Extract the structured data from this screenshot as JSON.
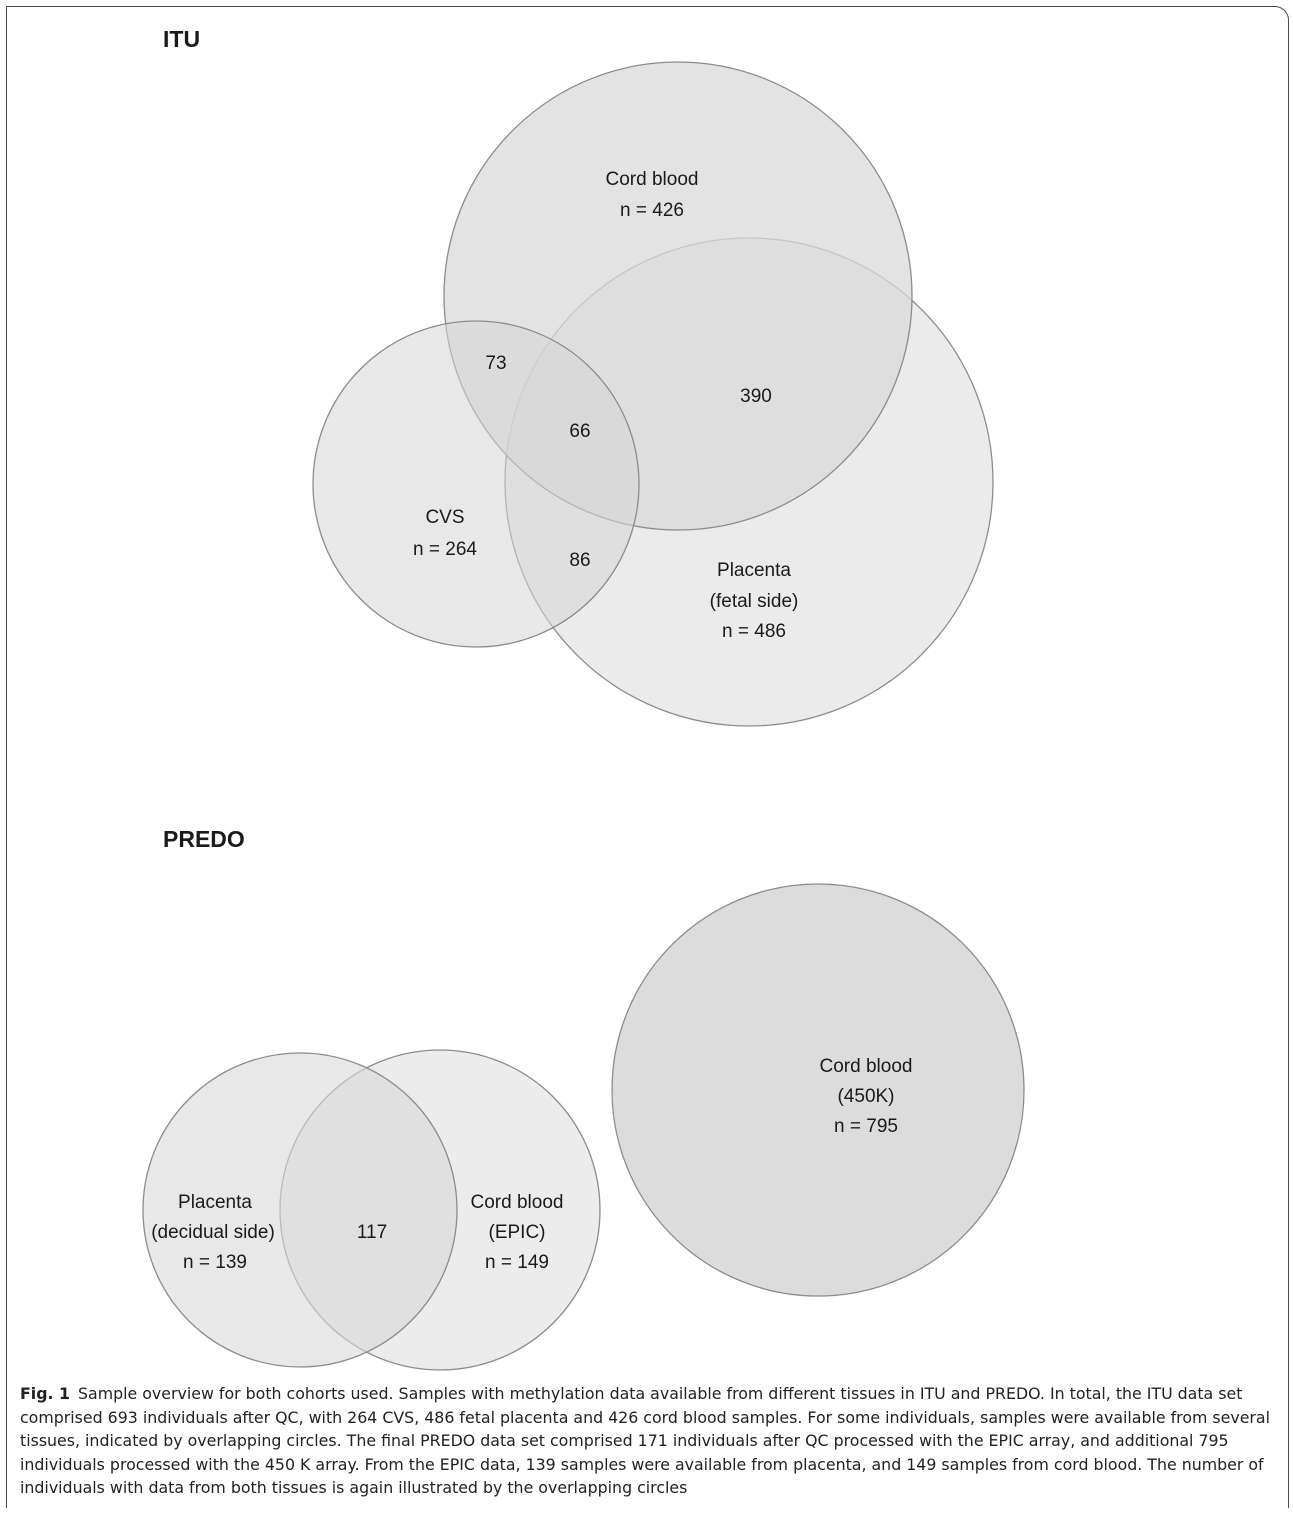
{
  "itu": {
    "title": "ITU",
    "sets": {
      "cord_blood": {
        "name": "Cord blood",
        "n": "n = 426"
      },
      "cvs": {
        "name": "CVS",
        "n": "n = 264"
      },
      "placenta": {
        "name": "Placenta",
        "name2": "(fetal side)",
        "n": "n = 486"
      }
    },
    "overlaps": {
      "cvs_cord": "73",
      "all_three": "66",
      "cord_placenta": "390",
      "cvs_placenta": "86"
    }
  },
  "predo": {
    "title": "PREDO",
    "sets": {
      "placenta": {
        "name": "Placenta",
        "name2": "(decidual side)",
        "n": "n = 139"
      },
      "cord_epic": {
        "name": "Cord blood",
        "name2": "(EPIC)",
        "n": "n = 149"
      },
      "cord_450k": {
        "name": "Cord blood",
        "name2": "(450K)",
        "n": "n = 795"
      }
    },
    "overlaps": {
      "placenta_cord_epic": "117"
    }
  },
  "colors": {
    "circle_stroke": "#8c8c8c",
    "fill_dark": "#d9d9d9",
    "fill_mid": "#e2e2e2",
    "fill_light": "#ebebeb"
  },
  "caption": {
    "lead": "Fig. 1",
    "text": "Sample overview for both cohorts used. Samples with methylation data available from different tissues in ITU and PREDO. In total, the ITU data set comprised 693 individuals after QC, with 264 CVS, 486 fetal placenta and 426 cord blood samples. For some individuals, samples were available from several tissues, indicated by overlapping circles. The final PREDO data set comprised 171 individuals after QC processed with the EPIC array, and additional 795 individuals processed with the 450 K array. From the EPIC data, 139 samples were available from placenta, and 149 samples from cord blood. The number of individuals with data from both tissues is again illustrated by the overlapping circles"
  }
}
